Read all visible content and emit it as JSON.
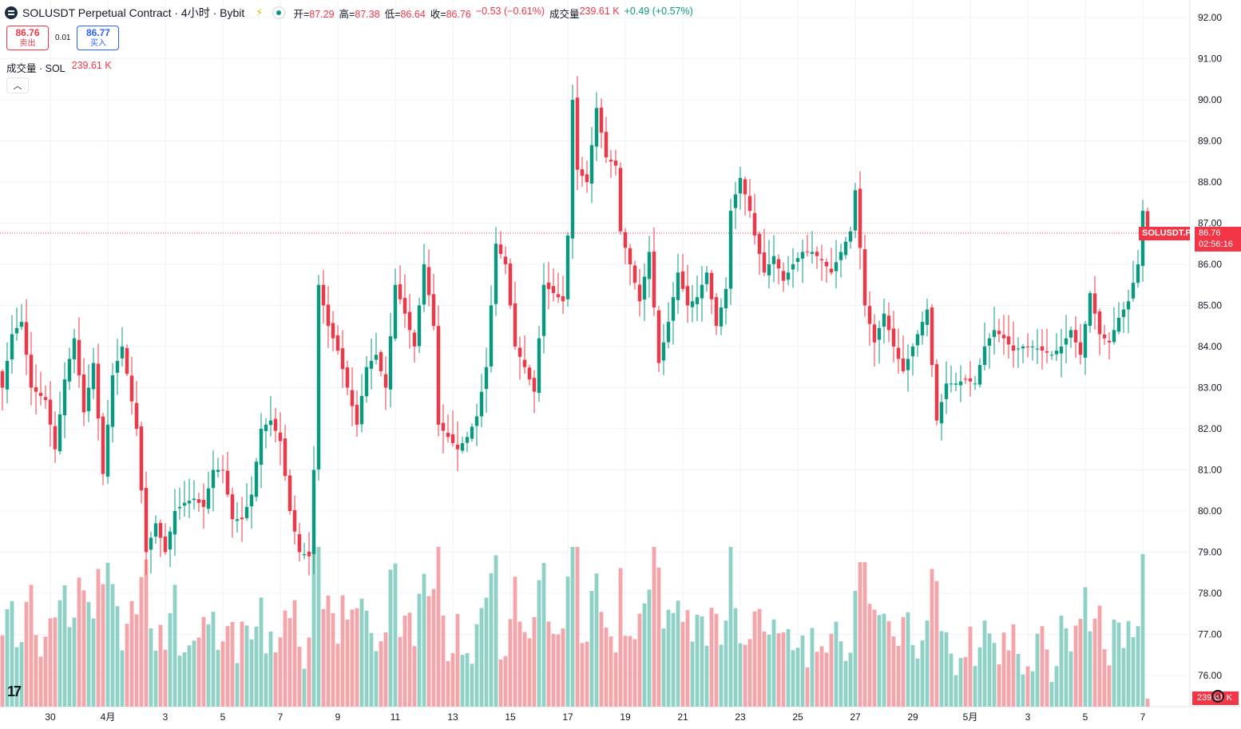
{
  "header": {
    "title": "SOLUSDT Perpetual Contract · 4小时 · Bybit",
    "ohlc": [
      {
        "label": "开",
        "value": "87.29"
      },
      {
        "label": "高",
        "value": "87.38"
      },
      {
        "label": "低",
        "value": "86.64"
      },
      {
        "label": "收",
        "value": "86.76"
      }
    ],
    "change": "−0.53 (−0.61%)",
    "volume_label": "成交量",
    "volume_value": "239.61 K",
    "volume_change": "+0.49 (+0.57%)"
  },
  "trade": {
    "sell_price": "86.76",
    "sell_label": "卖出",
    "spread": "0.01",
    "buy_price": "86.77",
    "buy_label": "买入"
  },
  "volume_indicator": {
    "label": "成交量 · SOL",
    "value": "239.61 K"
  },
  "price_tag": {
    "symbol": "SOLUSDT.P",
    "price": "86.76",
    "countdown": "02:56:16"
  },
  "volume_tag": "239.61 K",
  "colors": {
    "up": "#089981",
    "down": "#f23645",
    "up_volume": "#8fd1c6",
    "down_volume": "#f5a5a9",
    "grid": "#f0f3fa"
  },
  "chart_data": {
    "type": "candlestick",
    "y_axis": {
      "ticks": [
        "76.00",
        "77.00",
        "78.00",
        "79.00",
        "80.00",
        "81.00",
        "82.00",
        "83.00",
        "84.00",
        "85.00",
        "86.00",
        "87.00",
        "88.00",
        "89.00",
        "90.00",
        "91.00",
        "92.00"
      ],
      "range": [
        75.2,
        92.5
      ]
    },
    "x_axis": {
      "ticks": [
        {
          "label": "30",
          "index": 10
        },
        {
          "label": "4月",
          "index": 22
        },
        {
          "label": "3",
          "index": 34
        },
        {
          "label": "5",
          "index": 46
        },
        {
          "label": "7",
          "index": 58
        },
        {
          "label": "9",
          "index": 70
        },
        {
          "label": "11",
          "index": 82
        },
        {
          "label": "13",
          "index": 94
        },
        {
          "label": "15",
          "index": 106
        },
        {
          "label": "17",
          "index": 118
        },
        {
          "label": "19",
          "index": 130
        },
        {
          "label": "21",
          "index": 142
        },
        {
          "label": "23",
          "index": 154
        },
        {
          "label": "25",
          "index": 166
        },
        {
          "label": "27",
          "index": 178
        },
        {
          "label": "29",
          "index": 190
        },
        {
          "label": "5月",
          "index": 202
        },
        {
          "label": "3",
          "index": 214
        },
        {
          "label": "5",
          "index": 226
        },
        {
          "label": "7",
          "index": 238
        }
      ]
    },
    "last_price": 86.76,
    "waypoints": [
      [
        0,
        83.0
      ],
      [
        2,
        84.3
      ],
      [
        4,
        84.6
      ],
      [
        6,
        83.0
      ],
      [
        9,
        82.7
      ],
      [
        11,
        81.5
      ],
      [
        13,
        83.2
      ],
      [
        15,
        84.2
      ],
      [
        17,
        82.4
      ],
      [
        19,
        83.6
      ],
      [
        21,
        80.9
      ],
      [
        23,
        83.3
      ],
      [
        25,
        84.0
      ],
      [
        28,
        82.0
      ],
      [
        30,
        79.0
      ],
      [
        32,
        79.7
      ],
      [
        34,
        79.0
      ],
      [
        36,
        80.0
      ],
      [
        38,
        80.2
      ],
      [
        40,
        80.3
      ],
      [
        42,
        80.1
      ],
      [
        44,
        81.0
      ],
      [
        46,
        81.0
      ],
      [
        48,
        79.8
      ],
      [
        50,
        79.8
      ],
      [
        52,
        80.4
      ],
      [
        54,
        82.0
      ],
      [
        56,
        82.2
      ],
      [
        58,
        81.7
      ],
      [
        60,
        80.0
      ],
      [
        62,
        79.0
      ],
      [
        64,
        78.9
      ],
      [
        65,
        81.0
      ],
      [
        66,
        85.5
      ],
      [
        68,
        84.5
      ],
      [
        70,
        83.9
      ],
      [
        72,
        83.0
      ],
      [
        74,
        82.1
      ],
      [
        76,
        83.5
      ],
      [
        78,
        83.8
      ],
      [
        80,
        83.0
      ],
      [
        82,
        85.5
      ],
      [
        84,
        84.8
      ],
      [
        86,
        84.0
      ],
      [
        88,
        86.0
      ],
      [
        90,
        84.5
      ],
      [
        91,
        82.1
      ],
      [
        93,
        81.8
      ],
      [
        95,
        81.5
      ],
      [
        97,
        81.8
      ],
      [
        99,
        82.3
      ],
      [
        101,
        83.5
      ],
      [
        103,
        86.5
      ],
      [
        105,
        86.0
      ],
      [
        107,
        84.0
      ],
      [
        109,
        83.5
      ],
      [
        111,
        82.9
      ],
      [
        113,
        85.5
      ],
      [
        115,
        85.3
      ],
      [
        117,
        85.1
      ],
      [
        118,
        86.7
      ],
      [
        119,
        90.0
      ],
      [
        120,
        88.3
      ],
      [
        122,
        88.0
      ],
      [
        124,
        89.8
      ],
      [
        126,
        88.6
      ],
      [
        128,
        88.4
      ],
      [
        129,
        86.8
      ],
      [
        131,
        86.0
      ],
      [
        133,
        85.1
      ],
      [
        135,
        86.3
      ],
      [
        137,
        83.6
      ],
      [
        139,
        84.6
      ],
      [
        141,
        85.8
      ],
      [
        143,
        85.0
      ],
      [
        145,
        85.2
      ],
      [
        147,
        85.8
      ],
      [
        149,
        84.5
      ],
      [
        151,
        85.4
      ],
      [
        152,
        87.3
      ],
      [
        154,
        88.1
      ],
      [
        155,
        87.7
      ],
      [
        156,
        87.3
      ],
      [
        157,
        86.7
      ],
      [
        159,
        85.8
      ],
      [
        161,
        86.2
      ],
      [
        163,
        85.6
      ],
      [
        165,
        86.0
      ],
      [
        167,
        86.3
      ],
      [
        169,
        86.3
      ],
      [
        171,
        86.1
      ],
      [
        173,
        85.8
      ],
      [
        175,
        86.3
      ],
      [
        177,
        86.8
      ],
      [
        178,
        87.8
      ],
      [
        180,
        85.0
      ],
      [
        182,
        84.1
      ],
      [
        184,
        84.8
      ],
      [
        186,
        84.0
      ],
      [
        188,
        83.4
      ],
      [
        190,
        84.0
      ],
      [
        192,
        84.6
      ],
      [
        193,
        84.9
      ],
      [
        195,
        82.2
      ],
      [
        197,
        83.1
      ],
      [
        199,
        83.1
      ],
      [
        201,
        83.2
      ],
      [
        203,
        83.1
      ],
      [
        205,
        84.0
      ],
      [
        207,
        84.4
      ],
      [
        209,
        84.2
      ],
      [
        211,
        83.9
      ],
      [
        213,
        84.0
      ],
      [
        215,
        84.0
      ],
      [
        217,
        83.9
      ],
      [
        219,
        83.8
      ],
      [
        221,
        84.0
      ],
      [
        223,
        84.4
      ],
      [
        225,
        83.8
      ],
      [
        227,
        85.3
      ],
      [
        229,
        84.3
      ],
      [
        231,
        84.1
      ],
      [
        233,
        84.7
      ],
      [
        235,
        85.1
      ],
      [
        237,
        86.0
      ],
      [
        238,
        87.3
      ],
      [
        239,
        86.76
      ]
    ]
  }
}
